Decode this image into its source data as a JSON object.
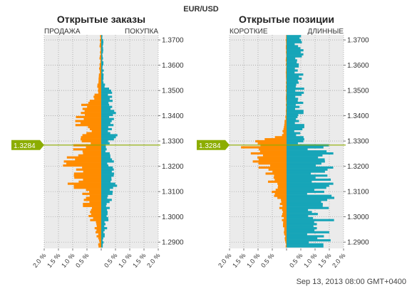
{
  "header": {
    "pair": "EUR/USD",
    "timestamp": "Sep 13, 2013 08:00 GMT+0400",
    "price_label": "1.3284",
    "current_price": 1.3284
  },
  "colors": {
    "sell": "#ff8c00",
    "buy": "#17a5b8",
    "price_line": "#8cad00",
    "panel_bg": "#ebebeb",
    "grid": "#8a8a8a"
  },
  "chart_data": [
    {
      "type": "bar",
      "orientation": "horizontal-diverging",
      "title": "Открытые заказы",
      "left_label": "ПРОДАЖА",
      "right_label": "ПОКУПКА",
      "xlim": [
        -2.0,
        2.0
      ],
      "ylim": [
        1.2875,
        1.372
      ],
      "x_ticks": [
        "2.0 %",
        "1.5 %",
        "1.0 %",
        "0.5 %",
        "",
        "0.5 %",
        "1.0 %",
        "1.5 %",
        "2.0 %"
      ],
      "y_ticks": [
        "1.3700",
        "1.3600",
        "1.3500",
        "1.3400",
        "1.3300",
        "1.3200",
        "1.3100",
        "1.3000",
        "1.2900"
      ],
      "series": [
        {
          "name": "ПРОДАЖА",
          "profile": [
            [
              1.371,
              0.03
            ],
            [
              1.368,
              0.05
            ],
            [
              1.365,
              0.04
            ],
            [
              1.36,
              0.05
            ],
            [
              1.356,
              0.06
            ],
            [
              1.352,
              0.1
            ],
            [
              1.349,
              0.15
            ],
            [
              1.347,
              0.3
            ],
            [
              1.345,
              0.55
            ],
            [
              1.343,
              0.8
            ],
            [
              1.341,
              0.75
            ],
            [
              1.339,
              0.9
            ],
            [
              1.337,
              0.85
            ],
            [
              1.335,
              0.55
            ],
            [
              1.333,
              0.45
            ],
            [
              1.331,
              0.65
            ],
            [
              1.329,
              0.4
            ],
            [
              1.3285,
              0.2
            ]
          ]
        },
        {
          "name": "ПОКУПКА",
          "profile": [
            [
              1.3282,
              0.15
            ],
            [
              1.327,
              0.2
            ],
            [
              1.325,
              0.25
            ],
            [
              1.323,
              0.3
            ],
            [
              1.321,
              0.35
            ],
            [
              1.319,
              0.35
            ],
            [
              1.317,
              0.4
            ],
            [
              1.315,
              0.35
            ],
            [
              1.313,
              0.4
            ],
            [
              1.311,
              0.45
            ],
            [
              1.309,
              0.35
            ],
            [
              1.307,
              0.35
            ],
            [
              1.305,
              0.3
            ],
            [
              1.303,
              0.25
            ],
            [
              1.301,
              0.2
            ],
            [
              1.299,
              0.2
            ],
            [
              1.297,
              0.15
            ],
            [
              1.295,
              0.15
            ],
            [
              1.293,
              0.1
            ],
            [
              1.291,
              0.08
            ],
            [
              1.289,
              0.05
            ]
          ]
        },
        {
          "name": "sell-below-price",
          "profile": [
            [
              1.3282,
              0.7
            ],
            [
              1.327,
              0.85
            ],
            [
              1.325,
              1.0
            ],
            [
              1.323,
              0.95
            ],
            [
              1.321,
              1.05
            ],
            [
              1.319,
              0.9
            ],
            [
              1.317,
              0.8
            ],
            [
              1.315,
              0.7
            ],
            [
              1.313,
              1.05
            ],
            [
              1.311,
              0.7
            ],
            [
              1.309,
              0.55
            ],
            [
              1.307,
              0.45
            ],
            [
              1.305,
              0.5
            ],
            [
              1.303,
              0.4
            ],
            [
              1.301,
              0.35
            ],
            [
              1.299,
              0.3
            ],
            [
              1.297,
              0.25
            ],
            [
              1.295,
              0.2
            ],
            [
              1.293,
              0.15
            ],
            [
              1.291,
              0.1
            ],
            [
              1.289,
              0.08
            ]
          ]
        },
        {
          "name": "buy-above-price",
          "profile": [
            [
              1.371,
              0.05
            ],
            [
              1.368,
              0.06
            ],
            [
              1.365,
              0.05
            ],
            [
              1.36,
              0.06
            ],
            [
              1.356,
              0.08
            ],
            [
              1.352,
              0.12
            ],
            [
              1.349,
              0.35
            ],
            [
              1.347,
              0.45
            ],
            [
              1.345,
              0.4
            ],
            [
              1.343,
              0.3
            ],
            [
              1.341,
              0.5
            ],
            [
              1.339,
              0.4
            ],
            [
              1.337,
              0.45
            ],
            [
              1.335,
              0.35
            ],
            [
              1.333,
              0.4
            ],
            [
              1.331,
              0.45
            ],
            [
              1.329,
              0.35
            ],
            [
              1.3285,
              0.3
            ]
          ]
        }
      ]
    },
    {
      "type": "bar",
      "orientation": "horizontal-diverging",
      "title": "Открытые позиции",
      "left_label": "КОРОТКИЕ",
      "right_label": "ДЛИННЫЕ",
      "xlim": [
        -2.0,
        2.0
      ],
      "ylim": [
        1.2875,
        1.372
      ],
      "x_ticks": [
        "2.0 %",
        "1.5 %",
        "1.0 %",
        "0.5 %",
        "",
        "0.5 %",
        "1.0 %",
        "1.5 %",
        "2.0 %"
      ],
      "y_ticks": [
        "1.3700",
        "1.3600",
        "1.3500",
        "1.3400",
        "1.3300",
        "1.3200",
        "1.3100",
        "1.3000",
        "1.2900"
      ],
      "series": [
        {
          "name": "КОРОТКИЕ",
          "profile": [
            [
              1.3285,
              1.1
            ],
            [
              1.329,
              1.2
            ],
            [
              1.3295,
              1.05
            ],
            [
              1.33,
              0.95
            ],
            [
              1.3305,
              0.75
            ],
            [
              1.331,
              0.45
            ],
            [
              1.332,
              0.25
            ],
            [
              1.333,
              0.15
            ],
            [
              1.335,
              0.08
            ],
            [
              1.338,
              0.05
            ],
            [
              1.341,
              0.03
            ],
            [
              1.344,
              0.02
            ]
          ]
        },
        {
          "name": "ДЛИННЫЕ",
          "profile": [
            [
              1.344,
              0.05
            ],
            [
              1.341,
              0.1
            ],
            [
              1.338,
              0.2
            ],
            [
              1.336,
              0.3
            ],
            [
              1.334,
              0.4
            ],
            [
              1.332,
              0.55
            ],
            [
              1.331,
              0.8
            ],
            [
              1.33,
              1.4
            ],
            [
              1.3295,
              1.65
            ],
            [
              1.329,
              1.45
            ],
            [
              1.3285,
              1.2
            ]
          ]
        },
        {
          "name": "short-below-price",
          "profile": [
            [
              1.328,
              1.15
            ],
            [
              1.327,
              1.2
            ],
            [
              1.325,
              1.1
            ],
            [
              1.323,
              1.0
            ],
            [
              1.321,
              0.9
            ],
            [
              1.319,
              0.8
            ],
            [
              1.317,
              0.65
            ],
            [
              1.315,
              0.55
            ],
            [
              1.313,
              0.45
            ],
            [
              1.311,
              0.4
            ],
            [
              1.309,
              0.35
            ],
            [
              1.307,
              0.3
            ],
            [
              1.305,
              0.25
            ],
            [
              1.303,
              0.2
            ],
            [
              1.301,
              0.15
            ],
            [
              1.299,
              0.12
            ],
            [
              1.297,
              0.1
            ],
            [
              1.295,
              0.08
            ],
            [
              1.293,
              0.06
            ],
            [
              1.291,
              0.05
            ],
            [
              1.289,
              0.03
            ]
          ]
        },
        {
          "name": "long-below-price",
          "profile": [
            [
              1.328,
              0.45
            ],
            [
              1.327,
              0.35
            ],
            [
              1.325,
              0.2
            ],
            [
              1.323,
              0.15
            ],
            [
              1.32,
              0.1
            ],
            [
              1.317,
              0.08
            ],
            [
              1.314,
              0.06
            ],
            [
              1.311,
              0.05
            ],
            [
              1.308,
              0.04
            ],
            [
              1.305,
              0.03
            ],
            [
              1.3,
              0.02
            ],
            [
              1.29,
              0.01
            ]
          ]
        }
      ]
    }
  ]
}
